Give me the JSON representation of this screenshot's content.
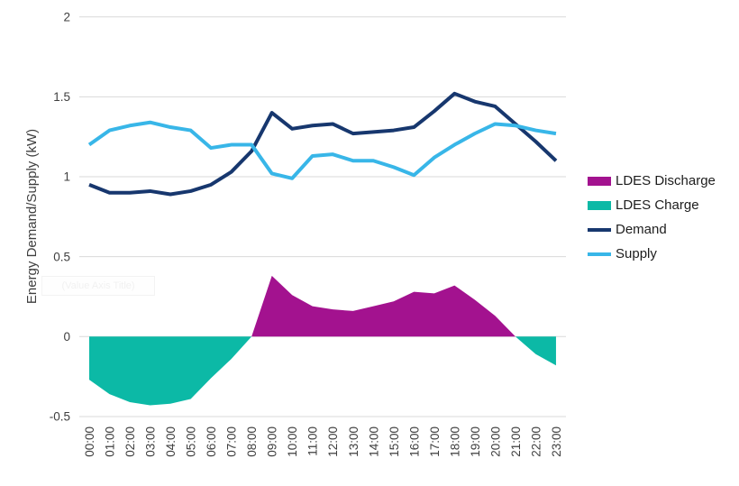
{
  "watermark": {
    "text": "(Value Axis Title)"
  },
  "chart_data": {
    "type": "area",
    "subtype": "combo area + line, hourly profile",
    "title": "",
    "xlabel": "",
    "ylabel": "Energy Demand/Supply (kW)",
    "categories": [
      "00:00",
      "01:00",
      "02:00",
      "03:00",
      "04:00",
      "05:00",
      "06:00",
      "07:00",
      "08:00",
      "09:00",
      "10:00",
      "11:00",
      "12:00",
      "13:00",
      "14:00",
      "15:00",
      "16:00",
      "17:00",
      "18:00",
      "19:00",
      "20:00",
      "21:00",
      "22:00",
      "23:00"
    ],
    "ylim": [
      -0.5,
      2
    ],
    "yticks": [
      2,
      1.5,
      1,
      0.5,
      0,
      -0.5
    ],
    "ytick_labels": [
      "2",
      "1.5",
      "1",
      "0.5",
      "0",
      "-0.5"
    ],
    "grid": true,
    "gridline_color": "#d9d9d9",
    "legend_position": "right",
    "series": [
      {
        "name": "LDES Discharge",
        "kind": "area",
        "color": "#A3128F",
        "values": [
          0,
          0,
          0,
          0,
          0,
          0,
          0,
          0,
          0,
          0.38,
          0.26,
          0.19,
          0.17,
          0.16,
          0.19,
          0.22,
          0.28,
          0.27,
          0.32,
          0.23,
          0.13,
          0,
          0,
          0
        ]
      },
      {
        "name": "LDES Charge",
        "kind": "area",
        "color": "#0CB9A6",
        "values": [
          -0.27,
          -0.36,
          -0.41,
          -0.43,
          -0.42,
          -0.39,
          -0.26,
          -0.14,
          0,
          0,
          0,
          0,
          0,
          0,
          0,
          0,
          0,
          0,
          0,
          0,
          0,
          0,
          -0.11,
          -0.18
        ]
      },
      {
        "name": "Demand",
        "kind": "line",
        "color": "#17376E",
        "values": [
          0.95,
          0.9,
          0.9,
          0.91,
          0.89,
          0.91,
          0.95,
          1.03,
          1.16,
          1.4,
          1.3,
          1.32,
          1.33,
          1.27,
          1.28,
          1.29,
          1.31,
          1.41,
          1.52,
          1.47,
          1.44,
          1.33,
          1.22,
          1.1
        ]
      },
      {
        "name": "Supply",
        "kind": "line",
        "color": "#38B6E8",
        "values": [
          1.2,
          1.29,
          1.32,
          1.34,
          1.31,
          1.29,
          1.18,
          1.2,
          1.2,
          1.02,
          0.99,
          1.13,
          1.14,
          1.1,
          1.1,
          1.06,
          1.01,
          1.12,
          1.2,
          1.27,
          1.33,
          1.32,
          1.29,
          1.27
        ]
      }
    ]
  }
}
